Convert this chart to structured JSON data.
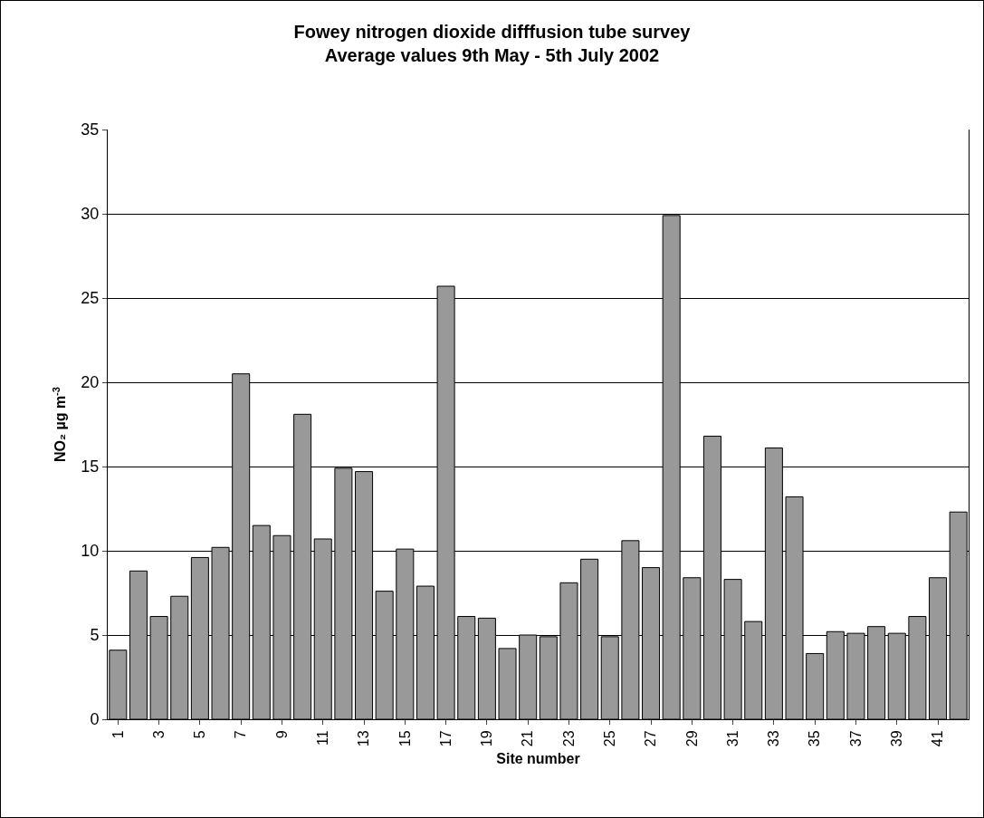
{
  "chart_data": {
    "type": "bar",
    "title": "Fowey nitrogen dioxide difffusion tube survey\nAverage values 9th May - 5th July 2002",
    "xlabel": "Site number",
    "ylabel": "NO₂ µg m$^{-3}$",
    "categories": [
      "1",
      null,
      "3",
      null,
      "5",
      null,
      "7",
      null,
      "9",
      null,
      "11",
      null,
      "13",
      null,
      "15",
      null,
      "17",
      null,
      "19",
      null,
      "21",
      null,
      "23",
      null,
      "25",
      null,
      "27",
      null,
      "29",
      null,
      "31",
      null,
      "33",
      null,
      "35",
      null,
      "37",
      null,
      "39",
      null,
      "41",
      null
    ],
    "values": [
      4.1,
      8.8,
      6.1,
      7.3,
      9.6,
      10.2,
      20.5,
      11.5,
      10.9,
      18.1,
      10.7,
      14.9,
      14.7,
      7.6,
      10.1,
      7.9,
      25.7,
      6.1,
      6.0,
      4.2,
      5.0,
      4.9,
      8.1,
      9.5,
      4.9,
      10.6,
      9.0,
      29.9,
      8.4,
      16.8,
      8.3,
      5.8,
      16.1,
      13.2,
      3.9,
      5.2,
      5.1,
      5.5,
      5.1,
      6.1,
      8.4,
      12.3
    ],
    "color": "#999999",
    "ylim": [
      0,
      35
    ],
    "yticks": [
      0,
      5,
      10,
      15,
      20,
      25,
      30,
      35
    ],
    "grid": "y"
  }
}
